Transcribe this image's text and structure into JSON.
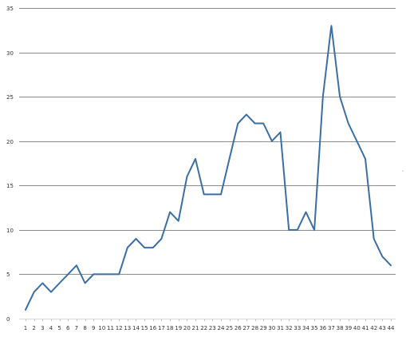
{
  "chart_data": {
    "type": "line",
    "title": "",
    "xlabel": "",
    "ylabel": "",
    "categories": [
      "1",
      "2",
      "3",
      "4",
      "5",
      "6",
      "7",
      "8",
      "9",
      "10",
      "11",
      "12",
      "13",
      "14",
      "15",
      "16",
      "17",
      "18",
      "19",
      "20",
      "21",
      "22",
      "23",
      "24",
      "25",
      "26",
      "27",
      "28",
      "29",
      "30",
      "31",
      "32",
      "33",
      "34",
      "35",
      "36",
      "37",
      "38",
      "39",
      "40",
      "41",
      "42",
      "43",
      "44"
    ],
    "y_ticks": [
      "0",
      "5",
      "10",
      "15",
      "20",
      "25",
      "30",
      "35"
    ],
    "ylim": [
      0,
      35
    ],
    "grid": true,
    "legend": "none",
    "series": [
      {
        "color": "#3a6ea5",
        "values": [
          1,
          3,
          4,
          3,
          4,
          5,
          6,
          4,
          5,
          5,
          5,
          5,
          8,
          9,
          8,
          8,
          9,
          12,
          11,
          16,
          18,
          14,
          14,
          14,
          18,
          22,
          23,
          22,
          22,
          20,
          21,
          10,
          10,
          12,
          10,
          25,
          33,
          25,
          22,
          20,
          18,
          9,
          7,
          6
        ]
      }
    ],
    "annotations": [
      ","
    ]
  }
}
